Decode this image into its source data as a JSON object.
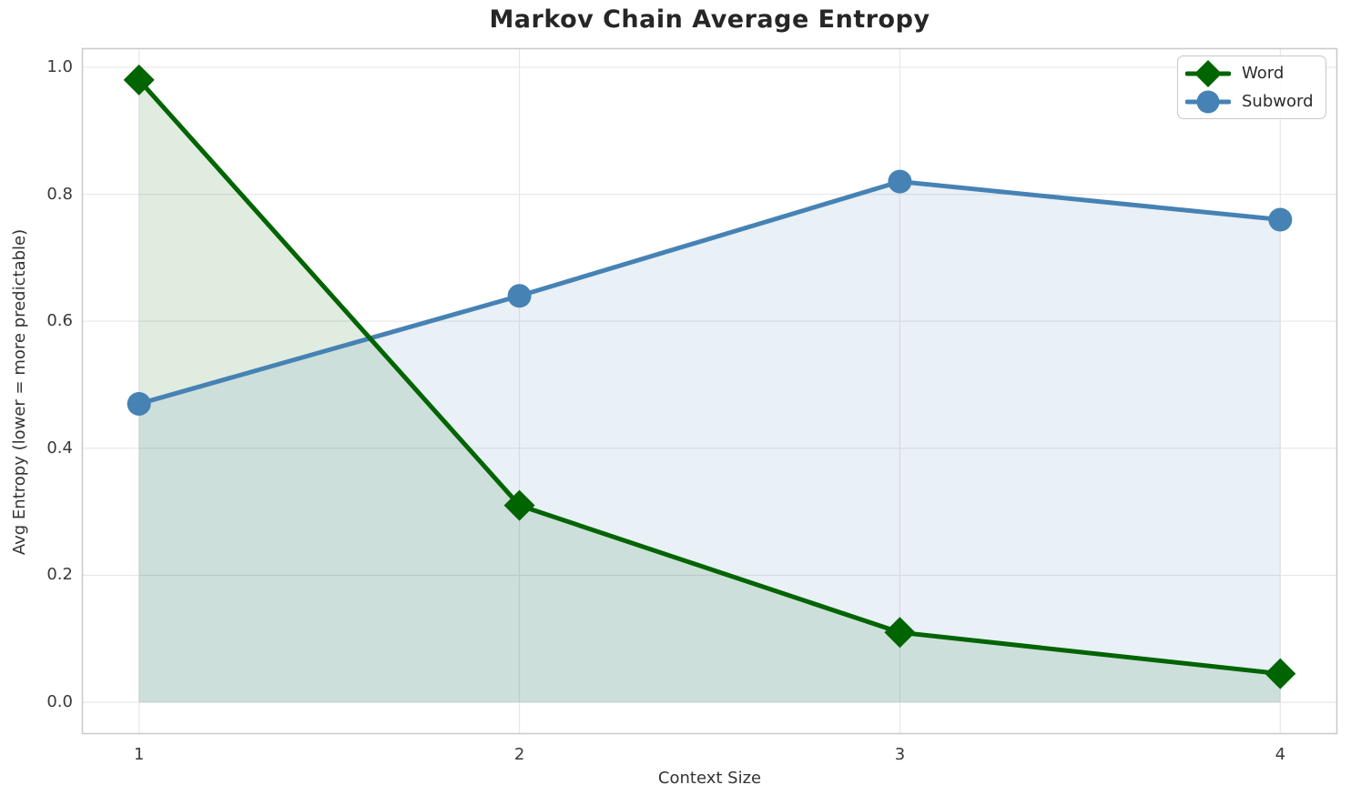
{
  "chart_data": {
    "type": "line",
    "title": "Markov Chain Average Entropy",
    "xlabel": "Context Size",
    "ylabel": "Avg Entropy (lower = more predictable)",
    "x": [
      1,
      2,
      3,
      4
    ],
    "xticks": [
      "1",
      "2",
      "3",
      "4"
    ],
    "yticks": [
      "0.0",
      "0.2",
      "0.4",
      "0.6",
      "0.8",
      "1.0"
    ],
    "ytick_values": [
      0.0,
      0.2,
      0.4,
      0.6,
      0.8,
      1.0
    ],
    "xlim": [
      0.85,
      4.15
    ],
    "ylim": [
      -0.05,
      1.03
    ],
    "grid": true,
    "legend_position": "upper right",
    "series": [
      {
        "name": "Word",
        "marker": "diamond",
        "color": "#006400",
        "fill_alpha": 0.12,
        "values": [
          0.98,
          0.31,
          0.11,
          0.045
        ]
      },
      {
        "name": "Subword",
        "marker": "circle",
        "color": "#4682b4",
        "fill_alpha": 0.12,
        "values": [
          0.47,
          0.64,
          0.82,
          0.76
        ]
      }
    ]
  },
  "colors": {
    "grid": "#e7e7e7",
    "spine": "#cbcbcb",
    "tick_label": "#3a3a3a",
    "title": "#262626"
  }
}
